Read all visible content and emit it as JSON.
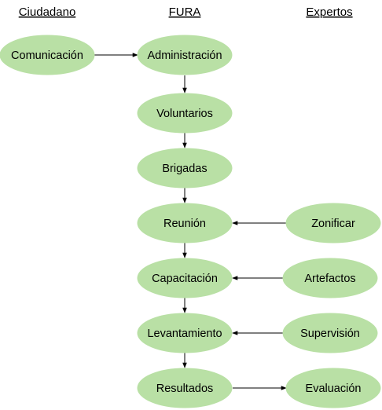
{
  "headers": {
    "ciudadano": "Ciudadano",
    "fura": "FURA",
    "expertos": "Expertos"
  },
  "nodes": {
    "comunicacion": "Comunicación",
    "administracion": "Administración",
    "voluntarios": "Voluntarios",
    "brigadas": "Brigadas",
    "reunion": "Reunión",
    "capacitacion": "Capacitación",
    "levantamiento": "Levantamiento",
    "resultados": "Resultados",
    "zonificar": "Zonificar",
    "artefactos": "Artefactos",
    "supervision": "Supervisión",
    "evaluacion": "Evaluación"
  },
  "colors": {
    "node_fill": "#b9e0a5",
    "edge": "#000000"
  }
}
